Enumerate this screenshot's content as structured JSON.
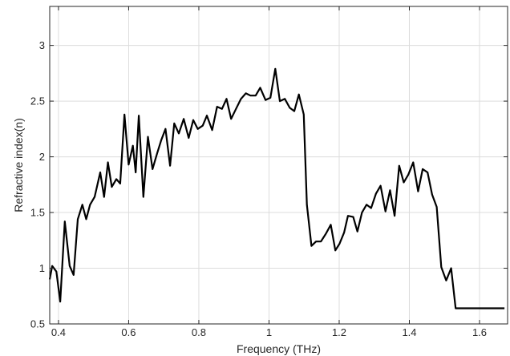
{
  "chart_data": {
    "type": "line",
    "title": "",
    "xlabel": "Frequency (THz)",
    "ylabel": "Refractive index(n)",
    "xlim": [
      0.375,
      1.68
    ],
    "ylim": [
      0.5,
      3.35
    ],
    "grid": true,
    "x_ticks": [
      0.4,
      0.6,
      0.8,
      1.0,
      1.2,
      1.4,
      1.6
    ],
    "x_tick_labels": [
      "0.4",
      "0.6",
      "0.8",
      "1",
      "1.2",
      "1.4",
      "1.6"
    ],
    "y_ticks": [
      0.5,
      1.0,
      1.5,
      2.0,
      2.5,
      3.0
    ],
    "y_tick_labels": [
      "0.5",
      "1",
      "1.5",
      "2",
      "2.5",
      "3"
    ],
    "line_color": "#000000",
    "series": [
      {
        "x": [
          0.375,
          0.382,
          0.394,
          0.405,
          0.418,
          0.432,
          0.443,
          0.455,
          0.468,
          0.479,
          0.49,
          0.503,
          0.519,
          0.53,
          0.541,
          0.552,
          0.565,
          0.576,
          0.588,
          0.6,
          0.612,
          0.62,
          0.629,
          0.642,
          0.655,
          0.668,
          0.681,
          0.693,
          0.705,
          0.718,
          0.73,
          0.743,
          0.757,
          0.771,
          0.784,
          0.797,
          0.811,
          0.823,
          0.838,
          0.852,
          0.866,
          0.879,
          0.892,
          0.906,
          0.92,
          0.934,
          0.947,
          0.962,
          0.975,
          0.99,
          1.004,
          1.018,
          1.031,
          1.045,
          1.059,
          1.072,
          1.085,
          1.099,
          1.108,
          1.121,
          1.134,
          1.148,
          1.162,
          1.176,
          1.189,
          1.201,
          1.214,
          1.225,
          1.24,
          1.252,
          1.265,
          1.278,
          1.291,
          1.305,
          1.318,
          1.332,
          1.345,
          1.358,
          1.371,
          1.384,
          1.397,
          1.411,
          1.425,
          1.438,
          1.452,
          1.465,
          1.478,
          1.491,
          1.505,
          1.519,
          1.532,
          1.545,
          1.558,
          1.571,
          1.584,
          1.597,
          1.61,
          1.62,
          1.629,
          1.642,
          1.656,
          1.671
        ],
        "y": [
          0.9,
          1.02,
          0.97,
          0.7,
          1.42,
          1.02,
          0.94,
          1.44,
          1.57,
          1.44,
          1.57,
          1.64,
          1.86,
          1.64,
          1.95,
          1.73,
          1.8,
          1.76,
          2.38,
          1.93,
          2.1,
          1.86,
          2.37,
          1.64,
          2.18,
          1.89,
          2.03,
          2.15,
          2.25,
          1.92,
          2.3,
          2.21,
          2.34,
          2.17,
          2.33,
          2.25,
          2.28,
          2.37,
          2.24,
          2.45,
          2.43,
          2.52,
          2.34,
          2.43,
          2.52,
          2.57,
          2.55,
          2.55,
          2.62,
          2.51,
          2.53,
          2.79,
          2.5,
          2.52,
          2.44,
          2.41,
          2.56,
          2.38,
          1.57,
          1.2,
          1.24,
          1.24,
          1.31,
          1.39,
          1.16,
          1.22,
          1.32,
          1.47,
          1.46,
          1.33,
          1.5,
          1.57,
          1.54,
          1.67,
          1.74,
          1.51,
          1.7,
          1.47,
          1.92,
          1.77,
          1.84,
          1.95,
          1.69,
          1.89,
          1.86,
          1.66,
          1.55,
          1.01,
          0.89,
          1.0,
          0.64,
          0.64,
          0.64,
          0.64,
          0.64,
          0.64,
          0.64,
          0.64,
          0.64,
          0.64,
          0.64,
          0.64
        ]
      }
    ]
  }
}
